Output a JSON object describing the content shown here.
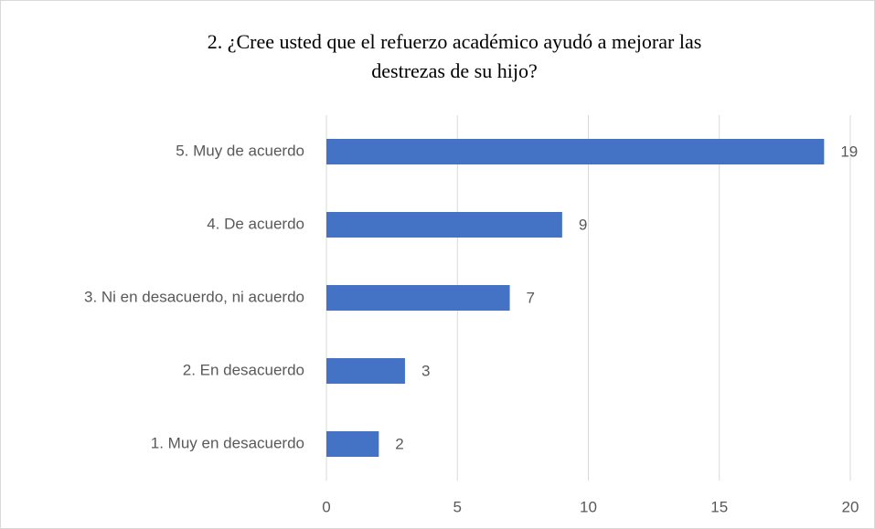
{
  "chart_data": {
    "type": "bar",
    "orientation": "horizontal",
    "title": "2. ¿Cree usted que el refuerzo académico ayudó a mejorar las destrezas de su hijo?",
    "categories": [
      "5. Muy de acuerdo",
      "4. De acuerdo",
      "3. Ni en desacuerdo, ni acuerdo",
      "2. En desacuerdo",
      "1. Muy en desacuerdo"
    ],
    "values": [
      19,
      9,
      7,
      3,
      2
    ],
    "color": "#4472c4",
    "xlim": [
      0,
      20
    ],
    "xticks": [
      0,
      5,
      10,
      15,
      20
    ],
    "grid": true
  }
}
